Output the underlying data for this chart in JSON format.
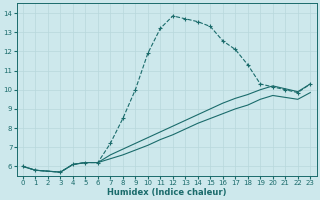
{
  "xlabel": "Humidex (Indice chaleur)",
  "xlim": [
    -0.5,
    23.5
  ],
  "ylim": [
    5.5,
    14.5
  ],
  "xticks": [
    0,
    1,
    2,
    3,
    4,
    5,
    6,
    7,
    8,
    9,
    10,
    11,
    12,
    13,
    14,
    15,
    16,
    17,
    18,
    19,
    20,
    21,
    22,
    23
  ],
  "yticks": [
    6,
    7,
    8,
    9,
    10,
    11,
    12,
    13,
    14
  ],
  "bg_color": "#cde8ec",
  "line_color": "#1a6b6b",
  "grid_color": "#b8d8dc",
  "curve_x": [
    0,
    1,
    3,
    4,
    5,
    6,
    7,
    8,
    9,
    10,
    11,
    12,
    13,
    14,
    15,
    16,
    17,
    18,
    19,
    20,
    21,
    22,
    23
  ],
  "curve_y": [
    6.0,
    5.8,
    5.7,
    6.1,
    6.2,
    6.2,
    7.2,
    8.5,
    10.0,
    11.9,
    13.2,
    13.85,
    13.7,
    13.55,
    13.3,
    12.55,
    12.1,
    11.3,
    10.3,
    10.15,
    10.0,
    9.85,
    10.3
  ],
  "line1_x": [
    0,
    1,
    3,
    4,
    5,
    6,
    7,
    8,
    9,
    10,
    11,
    12,
    13,
    14,
    15,
    16,
    17,
    18,
    19,
    20,
    21,
    22,
    23
  ],
  "line1_y": [
    6.0,
    5.8,
    5.7,
    6.1,
    6.2,
    6.2,
    6.6,
    6.9,
    7.2,
    7.5,
    7.8,
    8.1,
    8.4,
    8.7,
    9.0,
    9.3,
    9.55,
    9.75,
    10.0,
    10.2,
    10.05,
    9.9,
    10.3
  ],
  "line2_x": [
    0,
    1,
    3,
    4,
    5,
    6,
    7,
    8,
    9,
    10,
    11,
    12,
    13,
    14,
    15,
    16,
    17,
    18,
    19,
    20,
    21,
    22,
    23
  ],
  "line2_y": [
    6.0,
    5.8,
    5.7,
    6.1,
    6.2,
    6.2,
    6.4,
    6.6,
    6.85,
    7.1,
    7.4,
    7.65,
    7.95,
    8.25,
    8.5,
    8.75,
    9.0,
    9.2,
    9.5,
    9.7,
    9.6,
    9.5,
    9.85
  ]
}
